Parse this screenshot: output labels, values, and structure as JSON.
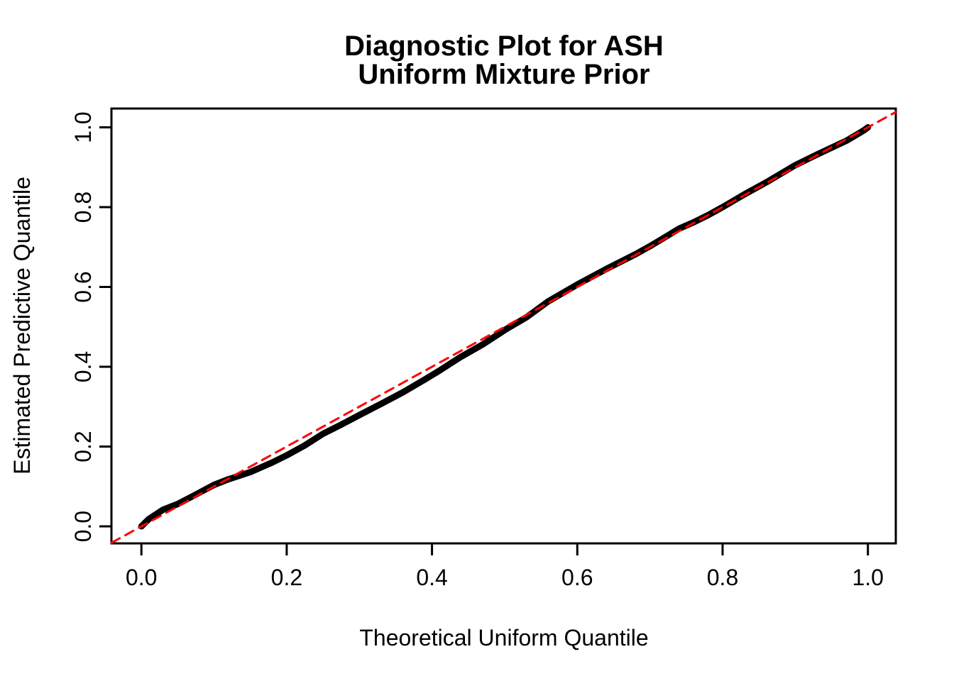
{
  "title": {
    "line1": "Diagnostic Plot for ASH",
    "line2": "Uniform Mixture Prior"
  },
  "colors": {
    "background": "#FFFFFF",
    "axis": "#000000",
    "curve": "#000000",
    "reference_line": "#FF0000"
  },
  "chart_data": {
    "type": "line",
    "title": "Diagnostic Plot for ASH Uniform Mixture Prior",
    "xlabel": "Theoretical Uniform Quantile",
    "ylabel": "Estimated Predictive Quantile",
    "xlim": [
      -0.041,
      1.039
    ],
    "ylim": [
      -0.043,
      1.047
    ],
    "grid": false,
    "legend": "none",
    "x_ticks": [
      0.0,
      0.2,
      0.4,
      0.6,
      0.8,
      1.0
    ],
    "x_tick_labels": [
      "0.0",
      "0.2",
      "0.4",
      "0.6",
      "0.8",
      "1.0"
    ],
    "y_ticks": [
      0.0,
      0.2,
      0.4,
      0.6,
      0.8,
      1.0
    ],
    "y_tick_labels": [
      "0.0",
      "0.2",
      "0.4",
      "0.6",
      "0.8",
      "1.0"
    ],
    "series": [
      {
        "name": "estimated-predictive-quantiles",
        "style": "solid",
        "color": "#000000",
        "stroke_px": 9,
        "points": [
          [
            0.0,
            0.0
          ],
          [
            0.01,
            0.018
          ],
          [
            0.03,
            0.042
          ],
          [
            0.05,
            0.056
          ],
          [
            0.07,
            0.075
          ],
          [
            0.1,
            0.104
          ],
          [
            0.12,
            0.118
          ],
          [
            0.15,
            0.136
          ],
          [
            0.18,
            0.16
          ],
          [
            0.2,
            0.178
          ],
          [
            0.225,
            0.203
          ],
          [
            0.25,
            0.232
          ],
          [
            0.275,
            0.255
          ],
          [
            0.3,
            0.279
          ],
          [
            0.33,
            0.307
          ],
          [
            0.36,
            0.336
          ],
          [
            0.39,
            0.368
          ],
          [
            0.41,
            0.39
          ],
          [
            0.44,
            0.425
          ],
          [
            0.47,
            0.456
          ],
          [
            0.5,
            0.492
          ],
          [
            0.53,
            0.524
          ],
          [
            0.56,
            0.564
          ],
          [
            0.6,
            0.606
          ],
          [
            0.64,
            0.645
          ],
          [
            0.68,
            0.682
          ],
          [
            0.7,
            0.702
          ],
          [
            0.72,
            0.724
          ],
          [
            0.74,
            0.746
          ],
          [
            0.76,
            0.762
          ],
          [
            0.78,
            0.78
          ],
          [
            0.8,
            0.8
          ],
          [
            0.83,
            0.832
          ],
          [
            0.86,
            0.862
          ],
          [
            0.9,
            0.905
          ],
          [
            0.93,
            0.932
          ],
          [
            0.95,
            0.949
          ],
          [
            0.97,
            0.966
          ],
          [
            0.985,
            0.982
          ],
          [
            0.995,
            0.993
          ],
          [
            1.0,
            1.0
          ]
        ]
      },
      {
        "name": "reference-diagonal",
        "style": "dashed",
        "color": "#FF0000",
        "stroke_px": 3,
        "points": [
          [
            -0.041,
            -0.041
          ],
          [
            1.039,
            1.039
          ]
        ]
      }
    ]
  }
}
